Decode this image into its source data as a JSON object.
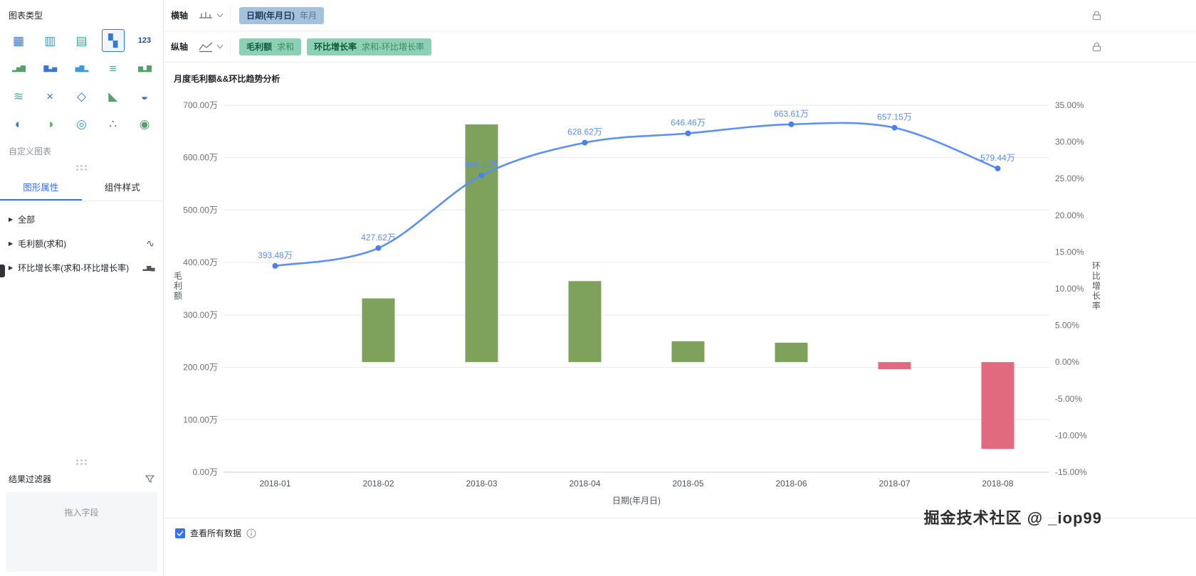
{
  "sidebar": {
    "title": "图表类型",
    "chart_type_icons": [
      {
        "name": "table-icon",
        "glyph": "▦",
        "color": "#3b76d2",
        "selected": false
      },
      {
        "name": "pivot-table-icon",
        "glyph": "▥",
        "color": "#3f9bd8",
        "selected": false
      },
      {
        "name": "detail-table-icon",
        "glyph": "▤",
        "color": "#43a795",
        "selected": false
      },
      {
        "name": "combo-chart-icon",
        "glyph": "▚",
        "color": "#3b76d2",
        "selected": true
      },
      {
        "name": "indicator-card-icon",
        "glyph": "123",
        "color": "#1f4e8c",
        "selected": false
      },
      {
        "name": "stacked-column-icon",
        "glyph": "▂▅▇",
        "color": "#58a06b",
        "selected": false
      },
      {
        "name": "column-chart-icon",
        "glyph": "▇▃▅",
        "color": "#3b76d2",
        "selected": false
      },
      {
        "name": "grouped-column-icon",
        "glyph": "▅▇▂",
        "color": "#3f9bd8",
        "selected": false
      },
      {
        "name": "bar-chart-icon",
        "glyph": "≡",
        "color": "#43a795",
        "selected": false
      },
      {
        "name": "waterfall-chart-icon",
        "glyph": "▆▂▇",
        "color": "#58a06b",
        "selected": false
      },
      {
        "name": "wave-chart-icon",
        "glyph": "≋",
        "color": "#45b5aa",
        "selected": false
      },
      {
        "name": "parallel-chart-icon",
        "glyph": "×",
        "color": "#3b76d2",
        "selected": false
      },
      {
        "name": "hexagon-chart-icon",
        "glyph": "◇",
        "color": "#3b76d2",
        "selected": false
      },
      {
        "name": "area-chart-icon",
        "glyph": "◣",
        "color": "#58a06b",
        "selected": false
      },
      {
        "name": "gauge-chart-icon",
        "glyph": "◒",
        "color": "#3b76d2",
        "selected": false
      },
      {
        "name": "pie-chart-icon",
        "glyph": "◐",
        "color": "#3b76d2",
        "selected": false
      },
      {
        "name": "rose-chart-icon",
        "glyph": "◑",
        "color": "#58b05c",
        "selected": false
      },
      {
        "name": "radar-chart-icon",
        "glyph": "◎",
        "color": "#3f9bd8",
        "selected": false
      },
      {
        "name": "scatter-chart-icon",
        "glyph": "∴",
        "color": "#5b7da0",
        "selected": false
      },
      {
        "name": "map-chart-icon",
        "glyph": "◉",
        "color": "#58a06b",
        "selected": false
      }
    ],
    "custom_chart_label": "自定义图表",
    "tabs": [
      {
        "name": "tab-graphic-properties",
        "label": "图形属性",
        "active": true
      },
      {
        "name": "tab-component-style",
        "label": "组件样式",
        "active": false
      }
    ],
    "sections": [
      {
        "name": "section-all",
        "label": "全部",
        "right_icon": null
      },
      {
        "name": "section-gross-profit",
        "label": "毛利额(求和)",
        "right_icon": "line"
      },
      {
        "name": "section-growth-rate",
        "label": "环比增长率(求和-环比增长率)",
        "right_icon": "bars"
      }
    ],
    "result_filter_label": "结果过滤器",
    "drop_field_placeholder": "拖入字段"
  },
  "axes_config": {
    "x_axis": {
      "label": "横轴",
      "pills": [
        {
          "name": "pill-date-dimension",
          "field": "日期(年月日)",
          "agg": "年月",
          "kind": "dimension"
        }
      ]
    },
    "y_axis": {
      "label": "纵轴",
      "pills": [
        {
          "name": "pill-gross-profit",
          "field": "毛利额",
          "agg": "求和",
          "kind": "measure"
        },
        {
          "name": "pill-growth-rate",
          "field": "环比增长率",
          "agg": "求和-环比增长率",
          "kind": "measure"
        }
      ]
    }
  },
  "chart_data": {
    "type": "combo bar+line",
    "title": "月度毛利额&&环比趋势分析",
    "categories": [
      "2018-01",
      "2018-02",
      "2018-03",
      "2018-04",
      "2018-05",
      "2018-06",
      "2018-07",
      "2018-08"
    ],
    "series": [
      {
        "name": "毛利额",
        "type": "line",
        "axis": "left",
        "unit": "万",
        "color": "#5B8FF9",
        "values": [
          393.48,
          427.62,
          566.11,
          628.62,
          646.46,
          663.61,
          657.15,
          579.44
        ],
        "labels": [
          "393.48万",
          "427.62万",
          "566.11万",
          "628.62万",
          "646.46万",
          "663.61万",
          "657.15万",
          "579.44万"
        ]
      },
      {
        "name": "环比增长率",
        "type": "bar",
        "axis": "right",
        "unit": "%",
        "color_positive": "#7EA15B",
        "color_negative": "#E16A7E",
        "values": [
          null,
          8.68,
          32.39,
          11.04,
          2.84,
          2.65,
          -0.97,
          -11.83
        ]
      }
    ],
    "left_axis": {
      "title": "毛利额",
      "min": 0,
      "max": 700,
      "tick_step": 100,
      "tick_labels": [
        "700.00万",
        "600.00万",
        "500.00万",
        "400.00万",
        "300.00万",
        "200.00万",
        "100.00万",
        "0.00万"
      ]
    },
    "right_axis": {
      "title": "环比增长率",
      "min": -15,
      "max": 35,
      "tick_step": 5,
      "tick_labels": [
        "35.00%",
        "30.00%",
        "25.00%",
        "20.00%",
        "15.00%",
        "10.00%",
        "5.00%",
        "0.00%",
        "-5.00%",
        "-10.00%",
        "-15.00%"
      ]
    },
    "xlabel": "日期(年月日)",
    "grid": true,
    "legend_position": "none"
  },
  "footer": {
    "checkbox_label": "查看所有数据",
    "checked": true
  },
  "watermark": "掘金技术社区 @ _iop99"
}
